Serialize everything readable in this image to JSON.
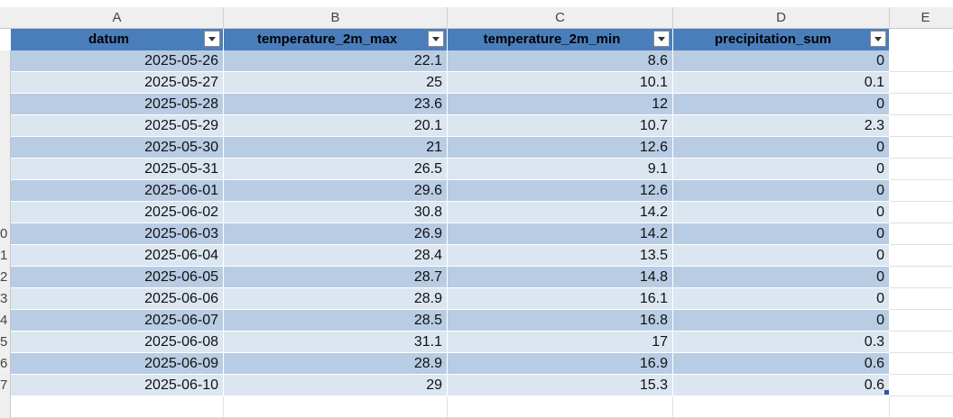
{
  "columns": [
    "A",
    "B",
    "C",
    "D",
    "E"
  ],
  "headers": [
    "datum",
    "temperature_2m_max",
    "temperature_2m_min",
    "precipitation_sum"
  ],
  "row_numbers": [
    "",
    "",
    "",
    "",
    "",
    "",
    "",
    "",
    "0",
    "1",
    "2",
    "3",
    "4",
    "5",
    "6",
    "7"
  ],
  "rows": [
    [
      "2025-05-26",
      "22.1",
      "8.6",
      "0"
    ],
    [
      "2025-05-27",
      "25",
      "10.1",
      "0.1"
    ],
    [
      "2025-05-28",
      "23.6",
      "12",
      "0"
    ],
    [
      "2025-05-29",
      "20.1",
      "10.7",
      "2.3"
    ],
    [
      "2025-05-30",
      "21",
      "12.6",
      "0"
    ],
    [
      "2025-05-31",
      "26.5",
      "9.1",
      "0"
    ],
    [
      "2025-06-01",
      "29.6",
      "12.6",
      "0"
    ],
    [
      "2025-06-02",
      "30.8",
      "14.2",
      "0"
    ],
    [
      "2025-06-03",
      "26.9",
      "14.2",
      "0"
    ],
    [
      "2025-06-04",
      "28.4",
      "13.5",
      "0"
    ],
    [
      "2025-06-05",
      "28.7",
      "14.8",
      "0"
    ],
    [
      "2025-06-06",
      "28.9",
      "16.1",
      "0"
    ],
    [
      "2025-06-07",
      "28.5",
      "16.8",
      "0"
    ],
    [
      "2025-06-08",
      "31.1",
      "17",
      "0.3"
    ],
    [
      "2025-06-09",
      "28.9",
      "16.9",
      "0.6"
    ],
    [
      "2025-06-10",
      "29",
      "15.3",
      "0.6"
    ]
  ],
  "colors": {
    "header_fill": "#4a7ebb",
    "band_dark": "#b8cce4",
    "band_light": "#dce6f1"
  },
  "icons": {
    "filter": "filter-dropdown-icon",
    "fill_handle": "fill-handle-icon"
  }
}
